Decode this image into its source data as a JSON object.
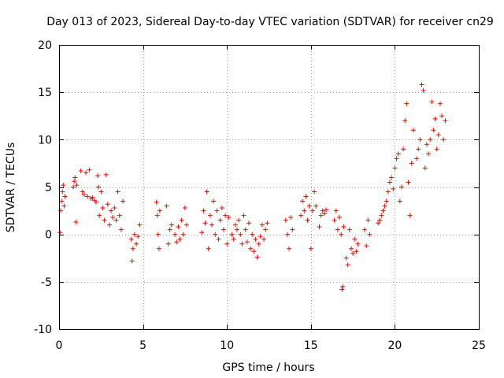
{
  "chart_data": {
    "type": "scatter",
    "title": "Day 013 of 2023, Sidereal Day-to-day VTEC variation (SDTVAR) for receiver cn29",
    "xlabel": "GPS time / hours",
    "ylabel": "SDTVAR / TECUs",
    "xlim": [
      0,
      25
    ],
    "ylim": [
      -10,
      20
    ],
    "xticks": [
      "0",
      "5",
      "10",
      "15",
      "20",
      "25"
    ],
    "yticks": [
      "-10",
      "-5",
      "0",
      "5",
      "10",
      "15",
      "20"
    ],
    "grid": true,
    "marker": "+",
    "color": "#ff0000",
    "series": [
      {
        "name": "SDTVAR",
        "points": [
          [
            0.05,
            0.2
          ],
          [
            0.1,
            2.5
          ],
          [
            0.15,
            3.5
          ],
          [
            0.2,
            4.5
          ],
          [
            0.25,
            5.2
          ],
          [
            0.3,
            3.0
          ],
          [
            0.35,
            4.0
          ],
          [
            0.85,
            5.0
          ],
          [
            0.9,
            5.6
          ],
          [
            0.95,
            6.0
          ],
          [
            1.0,
            1.3
          ],
          [
            1.05,
            5.2
          ],
          [
            1.3,
            6.7
          ],
          [
            1.4,
            4.5
          ],
          [
            1.5,
            4.2
          ],
          [
            1.6,
            6.5
          ],
          [
            1.7,
            4.0
          ],
          [
            1.8,
            6.8
          ],
          [
            1.9,
            3.8
          ],
          [
            2.0,
            3.9
          ],
          [
            2.1,
            3.6
          ],
          [
            2.2,
            3.4
          ],
          [
            2.3,
            6.2
          ],
          [
            2.35,
            5.0
          ],
          [
            2.4,
            2.0
          ],
          [
            2.5,
            4.5
          ],
          [
            2.6,
            2.8
          ],
          [
            2.7,
            1.5
          ],
          [
            2.8,
            6.3
          ],
          [
            2.9,
            3.2
          ],
          [
            3.0,
            1.0
          ],
          [
            3.1,
            2.5
          ],
          [
            3.2,
            1.8
          ],
          [
            3.3,
            2.8
          ],
          [
            3.4,
            1.5
          ],
          [
            3.5,
            4.5
          ],
          [
            3.6,
            2.0
          ],
          [
            3.7,
            0.5
          ],
          [
            3.8,
            3.5
          ],
          [
            4.3,
            -0.5
          ],
          [
            4.35,
            -2.8
          ],
          [
            4.4,
            -1.5
          ],
          [
            4.5,
            0.0
          ],
          [
            4.6,
            -1.0
          ],
          [
            4.7,
            -0.2
          ],
          [
            4.8,
            1.0
          ],
          [
            5.8,
            3.4
          ],
          [
            5.85,
            2.0
          ],
          [
            5.9,
            0.0
          ],
          [
            5.95,
            -1.5
          ],
          [
            6.0,
            2.5
          ],
          [
            6.4,
            3.0
          ],
          [
            6.5,
            -1.0
          ],
          [
            6.6,
            0.5
          ],
          [
            6.7,
            1.0
          ],
          [
            6.9,
            0.0
          ],
          [
            7.0,
            -0.8
          ],
          [
            7.1,
            0.8
          ],
          [
            7.2,
            -0.5
          ],
          [
            7.3,
            1.5
          ],
          [
            7.4,
            0.0
          ],
          [
            7.5,
            2.8
          ],
          [
            7.6,
            1.0
          ],
          [
            8.5,
            0.2
          ],
          [
            8.6,
            2.5
          ],
          [
            8.7,
            1.2
          ],
          [
            8.8,
            4.5
          ],
          [
            8.9,
            -1.5
          ],
          [
            9.0,
            2.0
          ],
          [
            9.1,
            1.0
          ],
          [
            9.2,
            3.5
          ],
          [
            9.3,
            0.0
          ],
          [
            9.4,
            2.5
          ],
          [
            9.5,
            -0.5
          ],
          [
            9.6,
            1.5
          ],
          [
            9.7,
            2.8
          ],
          [
            9.8,
            0.5
          ],
          [
            9.9,
            2.0
          ],
          [
            10.0,
            -1.0
          ],
          [
            10.1,
            1.8
          ],
          [
            10.3,
            0.0
          ],
          [
            10.4,
            -0.5
          ],
          [
            10.5,
            1.0
          ],
          [
            10.6,
            0.5
          ],
          [
            10.7,
            1.5
          ],
          [
            10.8,
            0.0
          ],
          [
            10.9,
            -1.0
          ],
          [
            11.0,
            2.0
          ],
          [
            11.1,
            0.5
          ],
          [
            11.2,
            -0.8
          ],
          [
            11.3,
            1.2
          ],
          [
            11.4,
            -1.5
          ],
          [
            11.5,
            0.0
          ],
          [
            11.6,
            -1.8
          ],
          [
            11.7,
            -0.5
          ],
          [
            11.8,
            -2.4
          ],
          [
            11.9,
            -1.0
          ],
          [
            12.0,
            -0.2
          ],
          [
            12.1,
            1.0
          ],
          [
            12.2,
            -0.5
          ],
          [
            12.3,
            0.5
          ],
          [
            12.4,
            1.2
          ],
          [
            13.5,
            1.5
          ],
          [
            13.6,
            0.0
          ],
          [
            13.7,
            -1.5
          ],
          [
            13.8,
            1.8
          ],
          [
            13.9,
            0.5
          ],
          [
            14.4,
            2.0
          ],
          [
            14.5,
            3.5
          ],
          [
            14.6,
            2.5
          ],
          [
            14.7,
            4.0
          ],
          [
            14.8,
            1.5
          ],
          [
            14.9,
            3.0
          ],
          [
            15.0,
            -1.5
          ],
          [
            15.1,
            2.5
          ],
          [
            15.2,
            4.5
          ],
          [
            15.3,
            3.0
          ],
          [
            15.5,
            0.8
          ],
          [
            15.6,
            2.0
          ],
          [
            15.7,
            2.5
          ],
          [
            15.8,
            2.2
          ],
          [
            15.9,
            2.6
          ],
          [
            16.4,
            1.5
          ],
          [
            16.5,
            2.5
          ],
          [
            16.6,
            0.5
          ],
          [
            16.7,
            1.8
          ],
          [
            16.8,
            0.0
          ],
          [
            16.85,
            -5.8
          ],
          [
            16.9,
            -5.5
          ],
          [
            16.95,
            0.8
          ],
          [
            17.1,
            -2.5
          ],
          [
            17.2,
            -3.2
          ],
          [
            17.3,
            0.5
          ],
          [
            17.4,
            -1.5
          ],
          [
            17.5,
            -2.0
          ],
          [
            17.6,
            -0.5
          ],
          [
            17.7,
            -1.8
          ],
          [
            17.8,
            -1.0
          ],
          [
            18.2,
            0.5
          ],
          [
            18.3,
            -1.2
          ],
          [
            18.4,
            1.5
          ],
          [
            18.5,
            0.0
          ],
          [
            19.0,
            1.2
          ],
          [
            19.1,
            1.5
          ],
          [
            19.2,
            2.0
          ],
          [
            19.3,
            2.5
          ],
          [
            19.4,
            3.0
          ],
          [
            19.5,
            3.5
          ],
          [
            19.6,
            4.5
          ],
          [
            19.7,
            5.5
          ],
          [
            19.8,
            6.0
          ],
          [
            19.9,
            4.8
          ],
          [
            20.0,
            7.0
          ],
          [
            20.1,
            8.0
          ],
          [
            20.2,
            8.5
          ],
          [
            20.3,
            3.5
          ],
          [
            20.4,
            5.0
          ],
          [
            20.5,
            9.0
          ],
          [
            20.6,
            12.0
          ],
          [
            20.7,
            13.8
          ],
          [
            20.8,
            5.5
          ],
          [
            20.9,
            2.0
          ],
          [
            21.0,
            7.5
          ],
          [
            21.1,
            11.0
          ],
          [
            21.3,
            8.0
          ],
          [
            21.4,
            9.0
          ],
          [
            21.5,
            10.0
          ],
          [
            21.6,
            15.8
          ],
          [
            21.7,
            15.2
          ],
          [
            21.8,
            7.0
          ],
          [
            21.9,
            9.5
          ],
          [
            22.0,
            8.5
          ],
          [
            22.1,
            10.0
          ],
          [
            22.2,
            14.0
          ],
          [
            22.3,
            11.0
          ],
          [
            22.4,
            12.2
          ],
          [
            22.5,
            9.0
          ],
          [
            22.6,
            10.5
          ],
          [
            22.7,
            13.8
          ],
          [
            22.8,
            12.5
          ],
          [
            22.9,
            10.0
          ],
          [
            23.0,
            12.0
          ]
        ]
      }
    ]
  }
}
